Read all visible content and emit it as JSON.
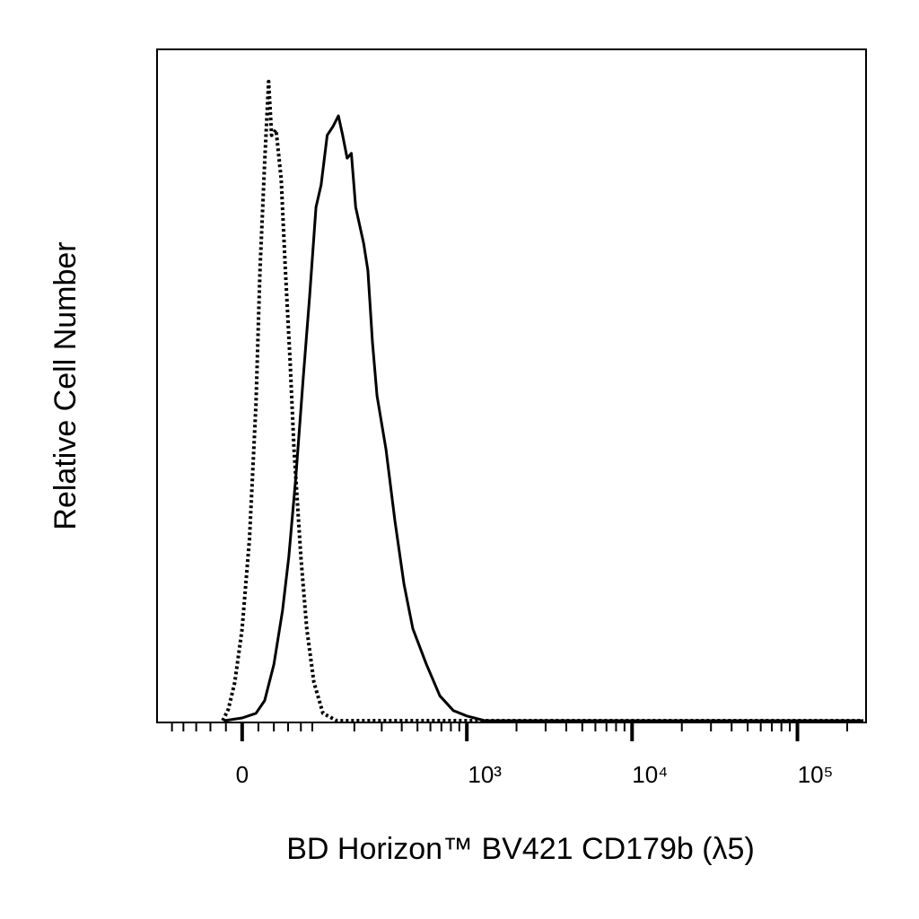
{
  "chart_data": {
    "type": "line",
    "xlabel": "BD Horizon™ BV421 CD179b (λ5)",
    "ylabel": "Relative Cell Number",
    "xscale": "biexponential",
    "xlim": [
      -130,
      260000
    ],
    "ylim": [
      0,
      100
    ],
    "xticks": [
      0,
      {
        "value": 1000,
        "label": "10³"
      },
      {
        "value": 10000,
        "label": "10⁴"
      },
      {
        "value": 100000,
        "label": "10⁵"
      }
    ],
    "xminorticks": [
      -100,
      -80,
      -60,
      -40,
      -20,
      20,
      40,
      60,
      80,
      100,
      200,
      300,
      400,
      500,
      600,
      700,
      800,
      900,
      2000,
      3000,
      4000,
      5000,
      6000,
      7000,
      8000,
      9000,
      20000,
      30000,
      40000,
      50000,
      60000,
      70000,
      80000,
      90000,
      200000
    ],
    "grid": false,
    "series": [
      {
        "color": "#000000",
        "linestyle": "dotted",
        "x": [
          -24,
          -17,
          -9,
          0,
          9,
          17,
          22,
          28,
          33,
          37,
          43,
          50,
          56,
          63,
          69,
          80,
          90,
          103,
          121,
          152,
          250000
        ],
        "values": [
          0,
          1.7,
          5.7,
          13.7,
          27.1,
          47.1,
          67.1,
          83.2,
          95.2,
          87.2,
          88.0,
          80.7,
          67.1,
          53.7,
          40.4,
          24.3,
          13.7,
          5.7,
          1.1,
          0,
          0
        ]
      },
      {
        "color": "#000000",
        "linestyle": "solid",
        "x": [
          -22,
          0,
          17,
          28,
          40,
          52,
          61,
          72,
          84,
          95,
          107,
          117,
          130,
          143,
          156,
          167,
          179,
          191,
          204,
          230,
          245,
          262,
          280,
          319,
          363,
          413,
          468,
          567,
          685,
          828,
          1000,
          1285,
          250000
        ],
        "values": [
          0,
          0.4,
          1.1,
          3.0,
          8.4,
          16.4,
          24.4,
          36.4,
          51.1,
          63.2,
          76.5,
          79.8,
          87.2,
          88.5,
          90.1,
          87.2,
          83.8,
          84.5,
          76.5,
          71.1,
          67.1,
          56.4,
          48.4,
          40.4,
          29.7,
          20.3,
          13.7,
          8.4,
          3.7,
          1.5,
          0.7,
          0,
          0
        ]
      }
    ]
  }
}
